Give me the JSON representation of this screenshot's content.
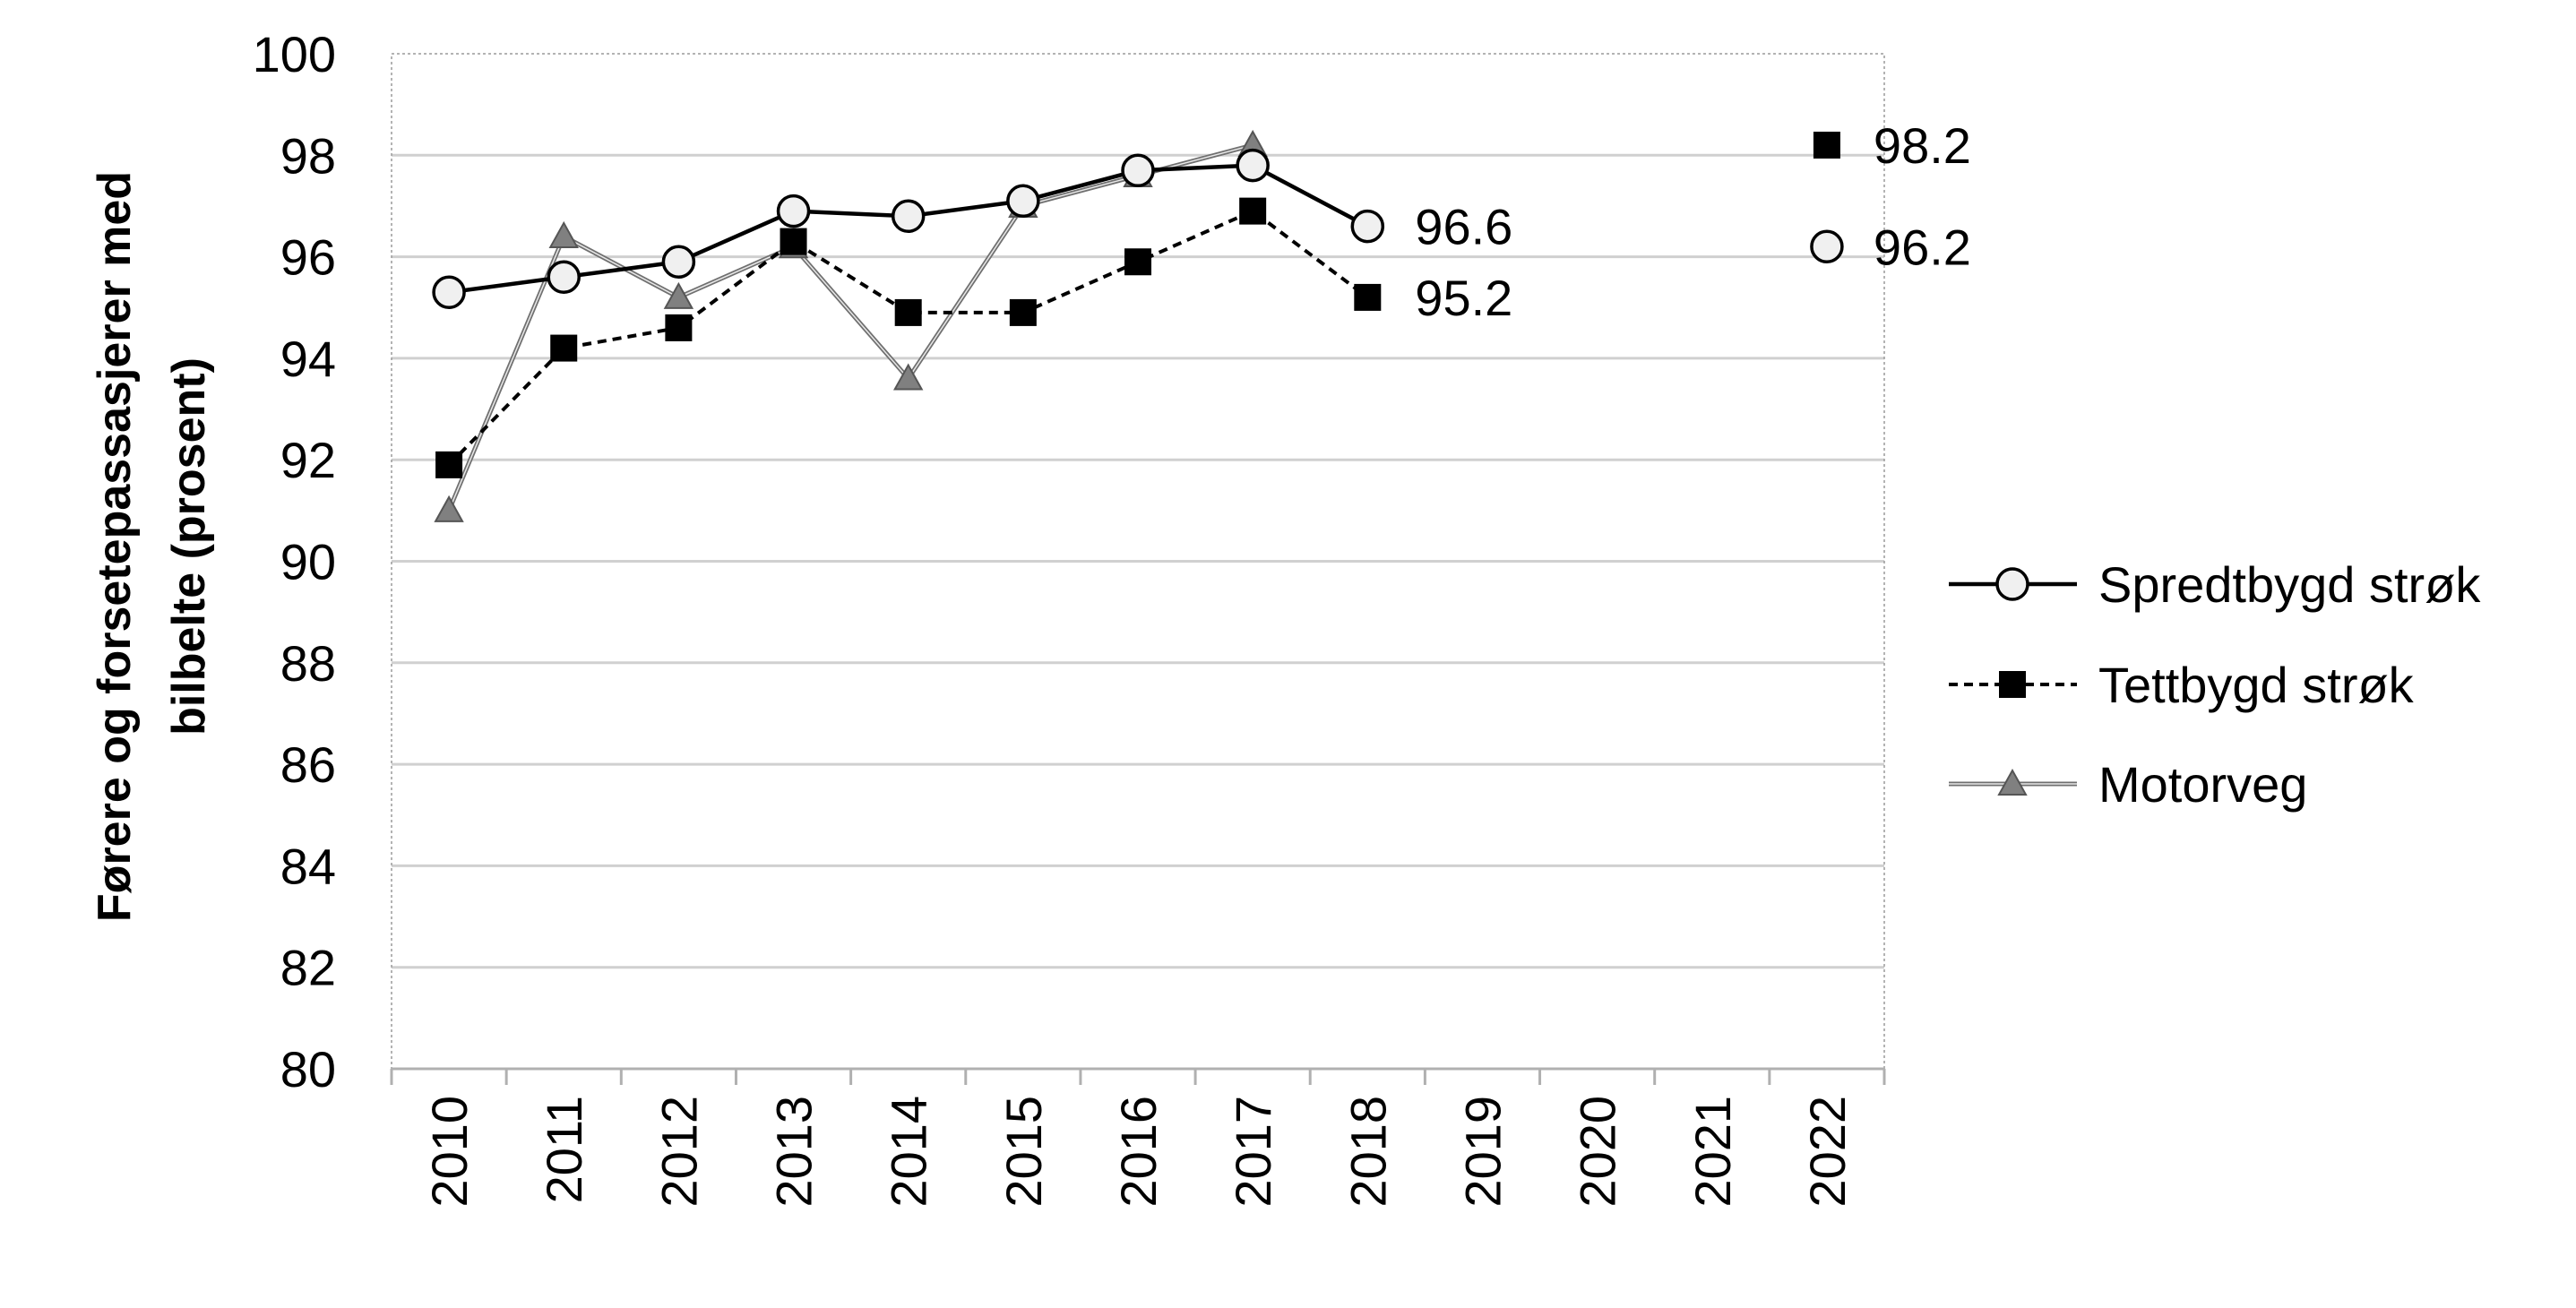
{
  "chart_data": {
    "type": "line",
    "title": "",
    "xlabel": "",
    "ylabel": "Førere og forsetepassasjerer med bilbelte (prosent)",
    "ylabel_lines": [
      "Førere og forsetepassasjerer med",
      "bilbelte (prosent)"
    ],
    "ylim": [
      80,
      100
    ],
    "yticks": [
      80,
      82,
      84,
      86,
      88,
      90,
      92,
      94,
      96,
      98,
      100
    ],
    "categories": [
      "2010",
      "2011",
      "2012",
      "2013",
      "2014",
      "2015",
      "2016",
      "2017",
      "2018",
      "2019",
      "2020",
      "2021",
      "2022"
    ],
    "grid": "horizontal",
    "legend": "right",
    "series": [
      {
        "name": "Spredtbygd strøk",
        "marker": "circle",
        "line": "solid",
        "color": "#000000",
        "values": [
          95.3,
          95.6,
          95.9,
          96.9,
          96.8,
          97.1,
          97.7,
          97.8,
          96.6,
          null,
          null,
          null,
          null
        ]
      },
      {
        "name": "Tettbygd strøk",
        "marker": "square",
        "line": "dashed",
        "color": "#000000",
        "values": [
          91.9,
          94.2,
          94.6,
          96.3,
          94.9,
          94.9,
          95.9,
          96.9,
          95.2,
          null,
          null,
          null,
          null
        ]
      },
      {
        "name": "Motorveg",
        "marker": "triangle",
        "line": "double",
        "color": "#808080",
        "values": [
          91.0,
          96.4,
          95.2,
          96.2,
          93.6,
          97.0,
          97.6,
          98.2,
          null,
          null,
          null,
          null,
          null
        ]
      }
    ],
    "targets": [
      {
        "series": "Tettbygd strøk",
        "marker": "square",
        "x": "2022",
        "y": 98.2,
        "label": "98.2"
      },
      {
        "series": "Spredtbygd strøk",
        "marker": "circle",
        "x": "2022",
        "y": 96.2,
        "label": "96.2"
      }
    ],
    "annotations": [
      {
        "series": "Spredtbygd strøk",
        "x": "2018",
        "y": 96.6,
        "label": "96.6"
      },
      {
        "series": "Tettbygd strøk",
        "x": "2018",
        "y": 95.2,
        "label": "95.2"
      }
    ]
  }
}
